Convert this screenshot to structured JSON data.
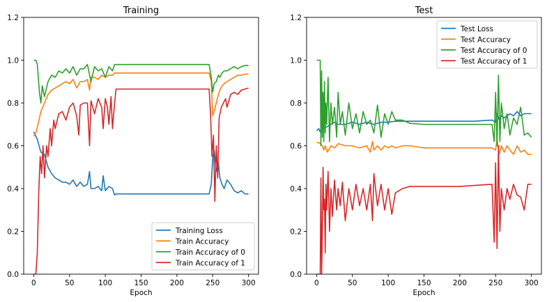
{
  "chart_data": [
    {
      "type": "line",
      "title": "Training",
      "xlabel": "Epoch",
      "ylabel": "",
      "xlim": [
        -14,
        314
      ],
      "ylim": [
        0,
        1.2
      ],
      "xticks": [
        0,
        50,
        100,
        150,
        200,
        250,
        300
      ],
      "yticks": [
        0.0,
        0.2,
        0.4,
        0.6,
        0.8,
        1.0,
        1.2
      ],
      "legend_position": "bottom-right",
      "series": [
        {
          "name": "Training Loss",
          "color": "#1f77b4",
          "x": [
            0,
            5,
            10,
            15,
            20,
            25,
            30,
            35,
            40,
            45,
            50,
            55,
            60,
            65,
            70,
            75,
            78,
            80,
            85,
            90,
            95,
            97,
            100,
            105,
            110,
            113,
            115,
            150,
            200,
            245,
            248,
            250,
            252,
            255,
            258,
            260,
            263,
            266,
            270,
            275,
            280,
            285,
            290,
            295,
            300
          ],
          "y": [
            0.665,
            0.63,
            0.57,
            0.56,
            0.5,
            0.47,
            0.45,
            0.44,
            0.43,
            0.43,
            0.42,
            0.44,
            0.41,
            0.43,
            0.41,
            0.42,
            0.48,
            0.4,
            0.4,
            0.41,
            0.39,
            0.46,
            0.39,
            0.41,
            0.4,
            0.37,
            0.375,
            0.375,
            0.375,
            0.375,
            0.42,
            0.54,
            0.58,
            0.48,
            0.52,
            0.45,
            0.42,
            0.4,
            0.44,
            0.42,
            0.39,
            0.38,
            0.39,
            0.375,
            0.375
          ]
        },
        {
          "name": "Train Accuracy",
          "color": "#ff7f0e",
          "x": [
            0,
            3,
            6,
            10,
            15,
            20,
            25,
            30,
            35,
            40,
            45,
            50,
            55,
            60,
            65,
            70,
            75,
            78,
            80,
            85,
            90,
            95,
            100,
            105,
            110,
            113,
            115,
            150,
            200,
            245,
            248,
            250,
            252,
            255,
            258,
            260,
            263,
            266,
            270,
            275,
            280,
            285,
            290,
            295,
            300
          ],
          "y": [
            0.645,
            0.66,
            0.7,
            0.76,
            0.8,
            0.84,
            0.86,
            0.87,
            0.88,
            0.89,
            0.9,
            0.89,
            0.91,
            0.87,
            0.9,
            0.9,
            0.91,
            0.86,
            0.92,
            0.92,
            0.91,
            0.93,
            0.92,
            0.93,
            0.93,
            0.94,
            0.94,
            0.94,
            0.94,
            0.94,
            0.9,
            0.74,
            0.76,
            0.8,
            0.84,
            0.86,
            0.88,
            0.89,
            0.9,
            0.91,
            0.92,
            0.93,
            0.93,
            0.935,
            0.935
          ]
        },
        {
          "name": "Train Accuracy of 0",
          "color": "#2ca02c",
          "x": [
            0,
            3,
            5,
            8,
            10,
            12,
            15,
            20,
            25,
            30,
            35,
            40,
            45,
            50,
            55,
            60,
            65,
            70,
            75,
            80,
            85,
            90,
            95,
            100,
            105,
            110,
            113,
            115,
            150,
            200,
            245,
            248,
            250,
            252,
            255,
            258,
            260,
            263,
            266,
            270,
            275,
            280,
            285,
            290,
            295,
            300
          ],
          "y": [
            1.0,
            1.0,
            0.98,
            0.85,
            0.8,
            0.88,
            0.83,
            0.9,
            0.93,
            0.92,
            0.95,
            0.94,
            0.96,
            0.94,
            0.97,
            0.93,
            0.96,
            0.96,
            0.98,
            0.9,
            0.97,
            0.95,
            0.96,
            0.92,
            0.97,
            0.95,
            0.98,
            0.98,
            0.98,
            0.98,
            0.98,
            0.92,
            0.85,
            0.89,
            0.9,
            0.93,
            0.92,
            0.94,
            0.95,
            0.95,
            0.96,
            0.97,
            0.96,
            0.97,
            0.975,
            0.975
          ]
        },
        {
          "name": "Train Accuracy of 1",
          "color": "#d62728",
          "x": [
            0,
            3,
            5,
            7,
            9,
            11,
            13,
            15,
            18,
            20,
            23,
            25,
            28,
            30,
            35,
            40,
            45,
            50,
            55,
            60,
            63,
            65,
            70,
            75,
            78,
            80,
            85,
            90,
            95,
            97,
            100,
            103,
            105,
            108,
            110,
            113,
            115,
            150,
            200,
            245,
            247,
            249,
            251,
            253,
            255,
            257,
            259,
            262,
            265,
            268,
            270,
            275,
            280,
            285,
            290,
            295,
            300
          ],
          "y": [
            0.0,
            0.0,
            0.1,
            0.38,
            0.55,
            0.47,
            0.6,
            0.45,
            0.6,
            0.55,
            0.68,
            0.6,
            0.72,
            0.68,
            0.75,
            0.76,
            0.72,
            0.78,
            0.8,
            0.74,
            0.65,
            0.79,
            0.8,
            0.8,
            0.6,
            0.81,
            0.75,
            0.82,
            0.78,
            0.68,
            0.82,
            0.78,
            0.7,
            0.83,
            0.68,
            0.8,
            0.865,
            0.865,
            0.865,
            0.865,
            0.75,
            0.55,
            0.65,
            0.34,
            0.6,
            0.45,
            0.73,
            0.78,
            0.8,
            0.82,
            0.78,
            0.84,
            0.85,
            0.84,
            0.86,
            0.865,
            0.87
          ]
        }
      ]
    },
    {
      "type": "line",
      "title": "Test",
      "xlabel": "Epoch",
      "ylabel": "",
      "xlim": [
        -14,
        314
      ],
      "ylim": [
        0,
        1.2
      ],
      "xticks": [
        0,
        50,
        100,
        150,
        200,
        250,
        300
      ],
      "yticks": [
        0.0,
        0.2,
        0.4,
        0.6,
        0.8,
        1.0,
        1.2
      ],
      "legend_position": "top-right",
      "series": [
        {
          "name": "Test Loss",
          "color": "#1f77b4",
          "x": [
            0,
            3,
            5,
            7,
            10,
            15,
            20,
            25,
            30,
            40,
            50,
            60,
            70,
            80,
            90,
            100,
            110,
            120,
            140,
            160,
            180,
            200,
            220,
            245,
            250,
            252,
            255,
            258,
            262,
            266,
            270,
            275,
            280,
            285,
            290,
            295,
            300
          ],
          "y": [
            0.67,
            0.68,
            0.665,
            0.69,
            0.68,
            0.69,
            0.7,
            0.71,
            0.7,
            0.7,
            0.71,
            0.7,
            0.71,
            0.7,
            0.71,
            0.71,
            0.715,
            0.715,
            0.715,
            0.715,
            0.715,
            0.715,
            0.715,
            0.72,
            0.71,
            0.75,
            0.72,
            0.74,
            0.73,
            0.74,
            0.75,
            0.74,
            0.76,
            0.74,
            0.75,
            0.75,
            0.75
          ]
        },
        {
          "name": "Test Accuracy",
          "color": "#ff7f0e",
          "x": [
            0,
            3,
            5,
            8,
            10,
            12,
            15,
            20,
            25,
            30,
            40,
            50,
            60,
            70,
            75,
            78,
            80,
            85,
            90,
            95,
            100,
            105,
            110,
            120,
            130,
            150,
            200,
            245,
            250,
            252,
            255,
            258,
            262,
            266,
            270,
            275,
            280,
            285,
            290,
            295,
            300
          ],
          "y": [
            0.615,
            0.615,
            0.61,
            0.6,
            0.58,
            0.6,
            0.57,
            0.6,
            0.59,
            0.61,
            0.6,
            0.6,
            0.59,
            0.6,
            0.57,
            0.62,
            0.58,
            0.6,
            0.58,
            0.6,
            0.59,
            0.6,
            0.59,
            0.6,
            0.6,
            0.59,
            0.59,
            0.59,
            0.58,
            0.63,
            0.56,
            0.6,
            0.57,
            0.6,
            0.58,
            0.56,
            0.6,
            0.57,
            0.58,
            0.56,
            0.56
          ]
        },
        {
          "name": "Test Accuracy of 0",
          "color": "#2ca02c",
          "x": [
            0,
            3,
            5,
            6,
            7,
            8,
            9,
            10,
            11,
            12,
            13,
            14,
            16,
            18,
            20,
            22,
            25,
            28,
            30,
            33,
            36,
            40,
            45,
            50,
            55,
            60,
            65,
            70,
            75,
            80,
            85,
            90,
            95,
            100,
            105,
            110,
            120,
            130,
            150,
            200,
            245,
            248,
            250,
            252,
            254,
            256,
            258,
            262,
            266,
            270,
            275,
            280,
            285,
            290,
            295,
            300
          ],
          "y": [
            1.0,
            1.0,
            1.0,
            0.6,
            0.95,
            0.64,
            0.85,
            0.62,
            0.9,
            0.66,
            0.8,
            0.7,
            0.92,
            0.62,
            0.8,
            0.7,
            0.78,
            0.64,
            0.85,
            0.7,
            0.76,
            0.65,
            0.8,
            0.68,
            0.75,
            0.66,
            0.76,
            0.7,
            0.72,
            0.66,
            0.79,
            0.64,
            0.75,
            0.7,
            0.76,
            0.72,
            0.72,
            0.705,
            0.7,
            0.7,
            0.7,
            0.62,
            0.85,
            0.6,
            0.93,
            0.62,
            0.8,
            0.68,
            0.75,
            0.65,
            0.73,
            0.7,
            0.78,
            0.65,
            0.66,
            0.64
          ]
        },
        {
          "name": "Test Accuracy of 1",
          "color": "#d62728",
          "x": [
            0,
            3,
            5,
            6,
            7,
            8,
            9,
            10,
            11,
            12,
            13,
            14,
            16,
            18,
            20,
            22,
            25,
            28,
            30,
            33,
            36,
            40,
            45,
            50,
            55,
            60,
            65,
            70,
            75,
            78,
            80,
            85,
            90,
            95,
            100,
            105,
            110,
            120,
            130,
            150,
            200,
            245,
            248,
            250,
            252,
            254,
            256,
            258,
            262,
            266,
            270,
            275,
            280,
            285,
            290,
            295,
            300
          ],
          "y": [
            0.0,
            0.0,
            0.0,
            0.45,
            0.0,
            0.2,
            0.5,
            0.3,
            0.35,
            0.1,
            0.42,
            0.3,
            0.48,
            0.2,
            0.4,
            0.27,
            0.44,
            0.3,
            0.4,
            0.32,
            0.43,
            0.25,
            0.4,
            0.3,
            0.42,
            0.32,
            0.4,
            0.3,
            0.42,
            0.25,
            0.47,
            0.32,
            0.42,
            0.3,
            0.4,
            0.28,
            0.38,
            0.4,
            0.41,
            0.41,
            0.41,
            0.42,
            0.15,
            0.52,
            0.12,
            0.6,
            0.2,
            0.4,
            0.3,
            0.4,
            0.35,
            0.42,
            0.37,
            0.36,
            0.3,
            0.42,
            0.42
          ]
        }
      ]
    }
  ]
}
